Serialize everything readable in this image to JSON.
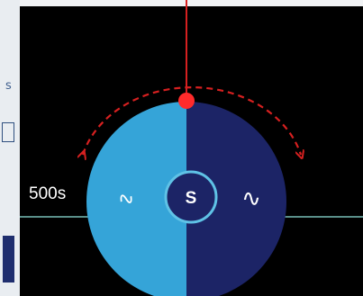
{
  "time_label": "500s",
  "center_label": "S",
  "left_half_symbol": "∿",
  "right_half_symbol": "∿",
  "left_strip": {
    "top_char": "s"
  },
  "colors": {
    "left_half": "#35a4d8",
    "right_half": "#1c2466",
    "center_disc": "#1c2466",
    "center_ring": "#5fc2e6",
    "marker": "#ff2b2b",
    "arc": "#d62020",
    "horizon": "#5a8f8a"
  }
}
